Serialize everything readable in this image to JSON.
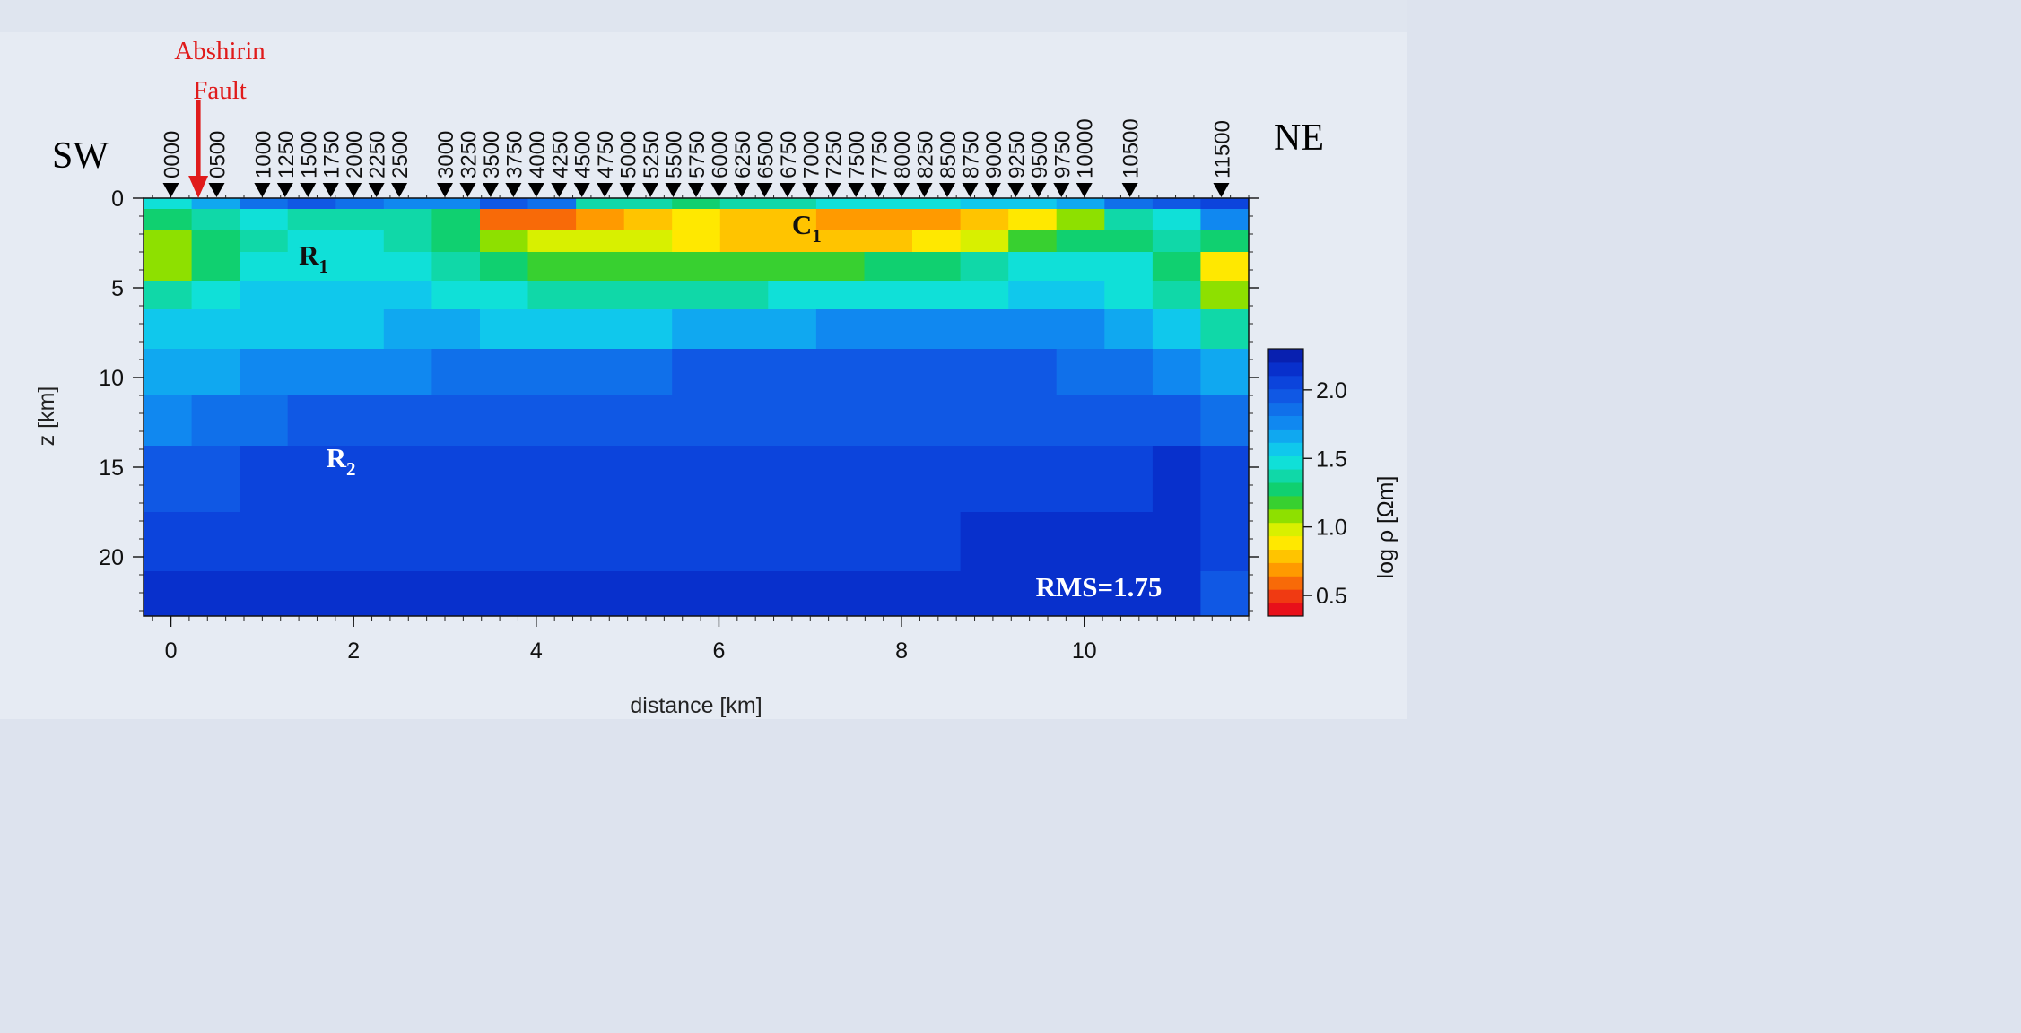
{
  "chart_data": {
    "type": "heatmap",
    "xlabel": "distance [km]",
    "ylabel": "z [km]",
    "xlim": [
      -0.3,
      11.8
    ],
    "ylim": [
      23.3,
      0
    ],
    "x_ticks": [
      0,
      2,
      4,
      6,
      8,
      10
    ],
    "y_ticks": [
      0,
      5,
      10,
      15,
      20
    ],
    "direction_labels": {
      "left": "SW",
      "right": "NE"
    },
    "fault": {
      "label_line1": "Abshirin",
      "label_line2": "Fault",
      "x": 0.3
    },
    "stations": [
      {
        "label": "0000",
        "x": 0.0
      },
      {
        "label": "0500",
        "x": 0.5
      },
      {
        "label": "1000",
        "x": 1.0
      },
      {
        "label": "1250",
        "x": 1.25
      },
      {
        "label": "1500",
        "x": 1.5
      },
      {
        "label": "1750",
        "x": 1.75
      },
      {
        "label": "2000",
        "x": 2.0
      },
      {
        "label": "2250",
        "x": 2.25
      },
      {
        "label": "2500",
        "x": 2.5
      },
      {
        "label": "3000",
        "x": 3.0
      },
      {
        "label": "3250",
        "x": 3.25
      },
      {
        "label": "3500",
        "x": 3.5
      },
      {
        "label": "3750",
        "x": 3.75
      },
      {
        "label": "4000",
        "x": 4.0
      },
      {
        "label": "4250",
        "x": 4.25
      },
      {
        "label": "4500",
        "x": 4.5
      },
      {
        "label": "4750",
        "x": 4.75
      },
      {
        "label": "5000",
        "x": 5.0
      },
      {
        "label": "5250",
        "x": 5.25
      },
      {
        "label": "5500",
        "x": 5.5
      },
      {
        "label": "5750",
        "x": 5.75
      },
      {
        "label": "6000",
        "x": 6.0
      },
      {
        "label": "6250",
        "x": 6.25
      },
      {
        "label": "6500",
        "x": 6.5
      },
      {
        "label": "6750",
        "x": 6.75
      },
      {
        "label": "7000",
        "x": 7.0
      },
      {
        "label": "7250",
        "x": 7.25
      },
      {
        "label": "7500",
        "x": 7.5
      },
      {
        "label": "7750",
        "x": 7.75
      },
      {
        "label": "8000",
        "x": 8.0
      },
      {
        "label": "8250",
        "x": 8.25
      },
      {
        "label": "8500",
        "x": 8.5
      },
      {
        "label": "8750",
        "x": 8.75
      },
      {
        "label": "9000",
        "x": 9.0
      },
      {
        "label": "9250",
        "x": 9.25
      },
      {
        "label": "9500",
        "x": 9.5
      },
      {
        "label": "9750",
        "x": 9.75
      },
      {
        "label": "10000",
        "x": 10.0
      },
      {
        "label": "10500",
        "x": 10.5
      },
      {
        "label": "11500",
        "x": 11.5
      }
    ],
    "annotations": [
      {
        "label": "R",
        "sub": "1",
        "x": 1.4,
        "z": 3.7,
        "color": "#111111"
      },
      {
        "label": "C",
        "sub": "1",
        "x": 6.8,
        "z": 2.0,
        "color": "#111111"
      },
      {
        "label": "R",
        "sub": "2",
        "x": 1.7,
        "z": 15.0,
        "color": "#ffffff"
      }
    ],
    "rms_label": "RMS=1.75",
    "colorbar": {
      "label": "log ρ [Ωm]",
      "range": [
        0.35,
        2.3
      ],
      "ticks": [
        0.5,
        1.0,
        1.5,
        2.0
      ],
      "tick_labels": [
        "0.5",
        "1.0",
        "1.5",
        "2.0"
      ],
      "colors": [
        "#e8101a",
        "#f03a12",
        "#f86a08",
        "#ff9a00",
        "#ffc400",
        "#ffe800",
        "#d8f000",
        "#8ee000",
        "#38d030",
        "#10d070",
        "#10d8a8",
        "#10e0d8",
        "#10c8ec",
        "#10a8f0",
        "#1088f0",
        "#1070ea",
        "#1058e4",
        "#0c44dc",
        "#0830cc",
        "#0820b0"
      ]
    },
    "model_layers": [
      {
        "z_top": 0,
        "z_bottom": 0.6,
        "values": [
          1.5,
          1.7,
          1.9,
          2.0,
          1.9,
          1.8,
          1.75,
          2.0,
          1.9,
          1.4,
          1.35,
          1.3,
          1.35,
          1.4,
          1.45,
          1.5,
          1.5,
          1.55,
          1.6,
          1.7,
          1.85,
          2.0,
          2.05
        ]
      },
      {
        "z_top": 0.6,
        "z_bottom": 1.8,
        "values": [
          1.3,
          1.35,
          1.45,
          1.4,
          1.35,
          1.35,
          1.3,
          0.6,
          0.55,
          0.65,
          0.8,
          0.85,
          0.8,
          0.75,
          0.7,
          0.65,
          0.7,
          0.75,
          0.9,
          1.1,
          1.35,
          1.45,
          1.8
        ]
      },
      {
        "z_top": 1.8,
        "z_bottom": 3.0,
        "values": [
          1.1,
          1.25,
          1.4,
          1.45,
          1.45,
          1.4,
          1.25,
          1.05,
          0.95,
          0.95,
          1.0,
          0.85,
          0.8,
          0.8,
          0.75,
          0.75,
          0.85,
          1.0,
          1.15,
          1.25,
          1.3,
          1.35,
          1.3
        ]
      },
      {
        "z_top": 3.0,
        "z_bottom": 4.6,
        "values": [
          1.05,
          1.25,
          1.45,
          1.5,
          1.5,
          1.5,
          1.4,
          1.25,
          1.2,
          1.2,
          1.2,
          1.15,
          1.15,
          1.2,
          1.2,
          1.25,
          1.3,
          1.35,
          1.45,
          1.5,
          1.5,
          1.3,
          0.85
        ]
      },
      {
        "z_top": 4.6,
        "z_bottom": 6.2,
        "values": [
          1.35,
          1.45,
          1.55,
          1.55,
          1.55,
          1.55,
          1.5,
          1.45,
          1.4,
          1.4,
          1.4,
          1.4,
          1.4,
          1.45,
          1.45,
          1.5,
          1.5,
          1.5,
          1.55,
          1.55,
          1.5,
          1.35,
          1.1
        ]
      },
      {
        "z_top": 6.2,
        "z_bottom": 8.4,
        "values": [
          1.55,
          1.6,
          1.6,
          1.6,
          1.6,
          1.62,
          1.62,
          1.6,
          1.6,
          1.6,
          1.6,
          1.62,
          1.65,
          1.7,
          1.72,
          1.75,
          1.75,
          1.75,
          1.72,
          1.72,
          1.7,
          1.55,
          1.35
        ]
      },
      {
        "z_top": 8.4,
        "z_bottom": 11.0,
        "values": [
          1.62,
          1.7,
          1.76,
          1.8,
          1.8,
          1.8,
          1.82,
          1.84,
          1.86,
          1.88,
          1.9,
          1.92,
          1.94,
          1.95,
          1.95,
          1.95,
          1.95,
          1.95,
          1.92,
          1.9,
          1.88,
          1.8,
          1.62
        ]
      },
      {
        "z_top": 11.0,
        "z_bottom": 13.8,
        "values": [
          1.75,
          1.85,
          1.9,
          1.95,
          1.96,
          1.97,
          1.98,
          1.98,
          1.98,
          1.98,
          1.99,
          2.0,
          2.0,
          2.0,
          2.0,
          2.0,
          2.0,
          2.0,
          2.0,
          2.0,
          2.0,
          1.98,
          1.9
        ]
      },
      {
        "z_top": 13.8,
        "z_bottom": 17.5,
        "values": [
          1.96,
          2.0,
          2.02,
          2.03,
          2.03,
          2.03,
          2.04,
          2.04,
          2.04,
          2.04,
          2.04,
          2.04,
          2.04,
          2.04,
          2.04,
          2.04,
          2.04,
          2.04,
          2.04,
          2.05,
          2.08,
          2.15,
          2.05
        ]
      },
      {
        "z_top": 17.5,
        "z_bottom": 20.8,
        "values": [
          2.05,
          2.06,
          2.06,
          2.06,
          2.06,
          2.06,
          2.06,
          2.06,
          2.06,
          2.06,
          2.06,
          2.06,
          2.06,
          2.06,
          2.06,
          2.06,
          2.06,
          2.15,
          2.2,
          2.2,
          2.2,
          2.18,
          2.05
        ]
      },
      {
        "z_top": 20.8,
        "z_bottom": 23.3,
        "values": [
          2.15,
          2.18,
          2.18,
          2.15,
          2.12,
          2.12,
          2.12,
          2.12,
          2.12,
          2.12,
          2.12,
          2.12,
          2.12,
          2.12,
          2.12,
          2.15,
          2.15,
          2.15,
          2.15,
          2.15,
          2.15,
          2.15,
          2.0
        ]
      }
    ]
  }
}
